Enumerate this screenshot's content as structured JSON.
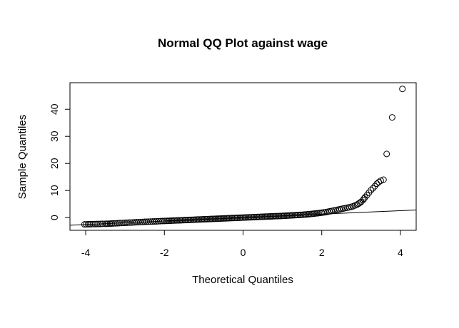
{
  "chart_data": {
    "type": "scatter",
    "title": "Normal QQ Plot against wage",
    "xlabel": "Theoretical Quantiles",
    "ylabel": "Sample Quantiles",
    "xlim": [
      -4.4,
      4.4
    ],
    "ylim": [
      -4.7,
      49.8
    ],
    "x_ticks": [
      -4,
      -2,
      0,
      2,
      4
    ],
    "x_tick_labels": [
      "-4",
      "-2",
      "0",
      "2",
      "4"
    ],
    "y_ticks": [
      0,
      10,
      20,
      30,
      40
    ],
    "y_tick_labels": [
      "0",
      "10",
      "20",
      "30",
      "40"
    ],
    "grid": false,
    "reference_line": {
      "slope": 0.64,
      "intercept": 0.0
    },
    "series": [
      {
        "marker": "open-circle",
        "points": [
          [
            -4.03,
            -2.5
          ],
          [
            -3.81,
            -2.4
          ],
          [
            -3.67,
            -2.35
          ],
          [
            -3.57,
            -2.3
          ],
          [
            -3.5,
            -2.3
          ],
          [
            -3.42,
            -2.25
          ],
          [
            -3.3,
            -2.15
          ],
          [
            -3.2,
            -2.1
          ],
          [
            -3.1,
            -2.0
          ],
          [
            -3.0,
            -1.95
          ],
          [
            -2.9,
            -1.85
          ],
          [
            -2.8,
            -1.8
          ],
          [
            -2.7,
            -1.7
          ],
          [
            -2.6,
            -1.65
          ],
          [
            -2.5,
            -1.55
          ],
          [
            -2.4,
            -1.5
          ],
          [
            -2.3,
            -1.45
          ],
          [
            -2.2,
            -1.4
          ],
          [
            -2.1,
            -1.3
          ],
          [
            -2.0,
            -1.25
          ],
          [
            -1.8,
            -1.12
          ],
          [
            -1.6,
            -1.0
          ],
          [
            -1.4,
            -0.88
          ],
          [
            -1.2,
            -0.75
          ],
          [
            -1.0,
            -0.62
          ],
          [
            -0.8,
            -0.5
          ],
          [
            -0.6,
            -0.38
          ],
          [
            -0.4,
            -0.25
          ],
          [
            -0.2,
            -0.12
          ],
          [
            0.0,
            0.0
          ],
          [
            0.2,
            0.12
          ],
          [
            0.4,
            0.25
          ],
          [
            0.6,
            0.38
          ],
          [
            0.8,
            0.5
          ],
          [
            1.0,
            0.62
          ],
          [
            1.2,
            0.78
          ],
          [
            1.4,
            0.95
          ],
          [
            1.6,
            1.15
          ],
          [
            1.8,
            1.45
          ],
          [
            2.0,
            1.8
          ],
          [
            2.1,
            2.0
          ],
          [
            2.2,
            2.3
          ],
          [
            2.3,
            2.6
          ],
          [
            2.4,
            2.9
          ],
          [
            2.5,
            3.2
          ],
          [
            2.6,
            3.5
          ],
          [
            2.7,
            3.8
          ],
          [
            2.8,
            4.2
          ],
          [
            2.9,
            4.8
          ],
          [
            3.0,
            5.8
          ],
          [
            3.05,
            6.5
          ],
          [
            3.1,
            7.5
          ],
          [
            3.15,
            8.3
          ],
          [
            3.2,
            9.2
          ],
          [
            3.25,
            10.1
          ],
          [
            3.3,
            10.8
          ],
          [
            3.35,
            11.6
          ],
          [
            3.4,
            12.5
          ],
          [
            3.45,
            13.1
          ],
          [
            3.5,
            13.6
          ],
          [
            3.57,
            14.0
          ],
          [
            3.65,
            23.5
          ],
          [
            3.79,
            37.0
          ],
          [
            4.05,
            47.5
          ]
        ]
      }
    ]
  }
}
